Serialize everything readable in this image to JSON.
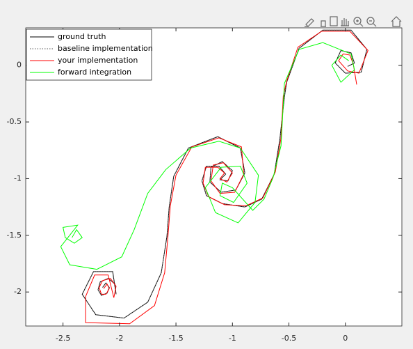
{
  "chart_data": {
    "type": "line",
    "xlim": [
      -2.83,
      0.5
    ],
    "ylim": [
      -2.3,
      0.33
    ],
    "xticks": [
      -2.5,
      -2,
      -1.5,
      -1,
      -0.5,
      0
    ],
    "yticks": [
      0,
      -0.5,
      -1,
      -1.5,
      -2
    ],
    "legend": "northwest",
    "series": [
      {
        "name": "ground truth",
        "color": "#000000",
        "line_style": "solid",
        "x": [
          -2.15,
          -2.12,
          -2.09,
          -2.11,
          -2.16,
          -2.19,
          -2.17,
          -2.1,
          -2.04,
          -2.03,
          -2.06,
          -2.23,
          -2.33,
          -2.21,
          -1.96,
          -1.75,
          -1.63,
          -1.58,
          -1.56,
          -1.52,
          -1.39,
          -1.13,
          -0.93,
          -0.89,
          -0.97,
          -1.1,
          -1.2,
          -1.19,
          -1.09,
          -1.0,
          -1.04,
          -1.11,
          -1.06,
          -1.12,
          -1.23,
          -1.27,
          -1.23,
          -1.09,
          -0.89,
          -0.74,
          -0.63,
          -0.58,
          -0.54,
          -0.52,
          -0.41,
          -0.2,
          0.05,
          0.19,
          0.14,
          0.0,
          -0.09,
          -0.04,
          0.05,
          0.08,
          0.02
        ],
        "y": [
          -1.96,
          -1.92,
          -1.96,
          -2.01,
          -2.03,
          -1.98,
          -1.91,
          -1.88,
          -1.93,
          -2.02,
          -1.82,
          -1.82,
          -2.02,
          -2.2,
          -2.23,
          -2.09,
          -1.83,
          -1.51,
          -1.25,
          -0.98,
          -0.73,
          -0.63,
          -0.73,
          -0.95,
          -1.1,
          -1.12,
          -1.03,
          -0.9,
          -0.85,
          -0.93,
          -1.02,
          -1.01,
          -0.96,
          -0.89,
          -0.89,
          -1.02,
          -1.15,
          -1.22,
          -1.25,
          -1.18,
          -0.96,
          -0.65,
          -0.28,
          -0.15,
          0.15,
          0.31,
          0.31,
          0.14,
          -0.06,
          -0.07,
          0.02,
          0.13,
          0.11,
          0.02,
          -0.01
        ]
      },
      {
        "name": "baseline implementation",
        "color": "#555555",
        "line_style": "dotted",
        "x": [
          -2.15,
          -2.12,
          -2.09,
          -2.11,
          -2.16,
          -2.19,
          -2.17,
          -2.1,
          -2.04,
          -2.03,
          -2.06,
          -2.23,
          -2.33,
          -2.21,
          -1.96,
          -1.75,
          -1.63,
          -1.58,
          -1.56,
          -1.52,
          -1.39,
          -1.13,
          -0.93,
          -0.89,
          -0.97,
          -1.1,
          -1.2,
          -1.19,
          -1.09,
          -1.0,
          -1.04,
          -1.11,
          -1.06,
          -1.12,
          -1.23,
          -1.27,
          -1.23,
          -1.09,
          -0.89,
          -0.74,
          -0.63,
          -0.58,
          -0.54,
          -0.52,
          -0.41,
          -0.2,
          0.05,
          0.19,
          0.14,
          0.0,
          -0.09,
          -0.04,
          0.05,
          0.08,
          0.02
        ],
        "y": [
          -1.96,
          -1.92,
          -1.96,
          -2.01,
          -2.03,
          -1.98,
          -1.91,
          -1.88,
          -1.93,
          -2.02,
          -1.82,
          -1.82,
          -2.02,
          -2.2,
          -2.23,
          -2.09,
          -1.83,
          -1.51,
          -1.25,
          -0.98,
          -0.73,
          -0.63,
          -0.73,
          -0.95,
          -1.1,
          -1.12,
          -1.03,
          -0.9,
          -0.85,
          -0.93,
          -1.02,
          -1.01,
          -0.96,
          -0.89,
          -0.89,
          -1.02,
          -1.15,
          -1.22,
          -1.25,
          -1.18,
          -0.96,
          -0.65,
          -0.28,
          -0.15,
          0.15,
          0.31,
          0.31,
          0.14,
          -0.06,
          -0.07,
          0.02,
          0.13,
          0.11,
          0.02,
          -0.01
        ]
      },
      {
        "name": "your implementation",
        "color": "#ff0000",
        "line_style": "solid",
        "x": [
          -2.14,
          -2.11,
          -2.09,
          -2.12,
          -2.16,
          -2.18,
          -2.15,
          -2.08,
          -2.03,
          -2.05,
          -2.1,
          -2.22,
          -2.3,
          -2.3,
          -1.91,
          -1.69,
          -1.6,
          -1.57,
          -1.55,
          -1.5,
          -1.36,
          -1.12,
          -0.92,
          -0.9,
          -0.98,
          -1.11,
          -1.19,
          -1.17,
          -1.08,
          -1.0,
          -1.05,
          -1.11,
          -1.07,
          -1.13,
          -1.24,
          -1.26,
          -1.21,
          -1.07,
          -0.88,
          -0.73,
          -0.62,
          -0.57,
          -0.55,
          -0.52,
          -0.42,
          -0.21,
          0.04,
          0.2,
          0.12,
          0.02,
          -0.06,
          -0.02,
          0.04,
          0.07,
          0.1
        ],
        "y": [
          -1.97,
          -1.93,
          -1.97,
          -2.02,
          -2.02,
          -1.96,
          -1.9,
          -1.88,
          -1.95,
          -2.05,
          -1.85,
          -1.85,
          -2.04,
          -2.27,
          -2.28,
          -2.12,
          -1.83,
          -1.5,
          -1.24,
          -0.97,
          -0.72,
          -0.64,
          -0.72,
          -0.96,
          -1.12,
          -1.13,
          -1.02,
          -0.88,
          -0.86,
          -0.95,
          -1.03,
          -1.0,
          -0.95,
          -0.9,
          -0.9,
          -1.04,
          -1.16,
          -1.23,
          -1.24,
          -1.17,
          -0.94,
          -0.64,
          -0.27,
          -0.14,
          0.16,
          0.3,
          0.3,
          0.13,
          -0.07,
          -0.05,
          0.04,
          0.1,
          0.09,
          0.01,
          -0.17
        ]
      },
      {
        "name": "forward integration",
        "color": "#00ff00",
        "line_style": "solid",
        "x": [
          -2.42,
          -2.38,
          -2.33,
          -2.4,
          -2.48,
          -2.5,
          -2.37,
          -2.52,
          -2.44,
          -2.2,
          -1.98,
          -1.87,
          -1.75,
          -1.59,
          -1.37,
          -1.12,
          -0.93,
          -0.77,
          -0.8,
          -0.95,
          -1.15,
          -1.24,
          -1.1,
          -0.93,
          -0.87,
          -0.99,
          -1.11,
          -1.09,
          -1.0,
          -0.82,
          -0.72,
          -0.64,
          -0.57,
          -0.54,
          -0.41,
          -0.2,
          0.05,
          0.08,
          -0.04,
          -0.12,
          -0.04,
          0.03
        ],
        "y": [
          -1.52,
          -1.45,
          -1.52,
          -1.57,
          -1.52,
          -1.43,
          -1.41,
          -1.6,
          -1.76,
          -1.8,
          -1.69,
          -1.45,
          -1.13,
          -0.92,
          -0.73,
          -0.67,
          -0.73,
          -0.97,
          -1.21,
          -1.39,
          -1.3,
          -1.08,
          -0.9,
          -0.89,
          -1.04,
          -1.21,
          -1.15,
          -1.04,
          -1.08,
          -1.28,
          -1.18,
          -0.99,
          -0.71,
          -0.16,
          0.14,
          0.2,
          0.1,
          -0.04,
          -0.15,
          0.0,
          0.09,
          0.04
        ]
      }
    ]
  }
}
